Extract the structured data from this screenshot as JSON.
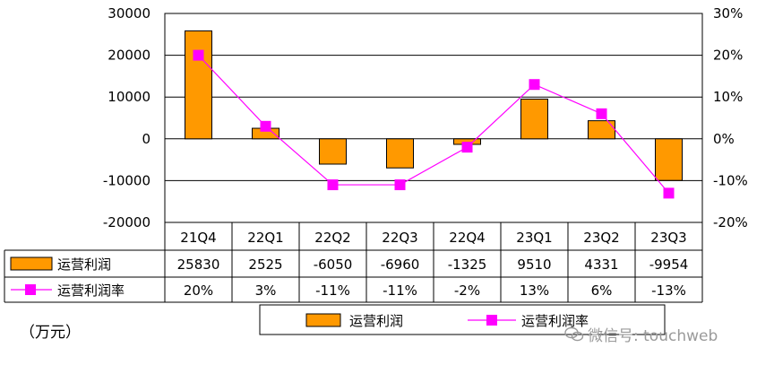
{
  "chart_data": {
    "type": "bar",
    "categories": [
      "21Q4",
      "22Q1",
      "22Q2",
      "22Q3",
      "22Q4",
      "23Q1",
      "23Q2",
      "23Q3"
    ],
    "series": [
      {
        "name": "运营利润",
        "kind": "bar",
        "axis": "left",
        "color": "#ff9900",
        "values": [
          25830,
          2525,
          -6050,
          -6960,
          -1325,
          9510,
          4331,
          -9954
        ],
        "labels": [
          "25830",
          "2525",
          "-6050",
          "-6960",
          "-1325",
          "9510",
          "4331",
          "-9954"
        ]
      },
      {
        "name": "运营利润率",
        "kind": "line",
        "axis": "right",
        "color": "#ff00ff",
        "values": [
          20,
          3,
          -11,
          -11,
          -2,
          13,
          6,
          -13
        ],
        "labels": [
          "20%",
          "3%",
          "-11%",
          "-11%",
          "-2%",
          "13%",
          "6%",
          "-13%"
        ]
      }
    ],
    "ylim_left": [
      -20000,
      30000
    ],
    "yticks_left": [
      "30000",
      "20000",
      "10000",
      "0",
      "-10000",
      "-20000"
    ],
    "ylim_right": [
      -20,
      30
    ],
    "yticks_right": [
      "30%",
      "20%",
      "10%",
      "0%",
      "-10%",
      "-20%"
    ],
    "grid": true,
    "legend": "bottom",
    "unit_label": "（万元）"
  },
  "watermark": "微信号: touchweb"
}
